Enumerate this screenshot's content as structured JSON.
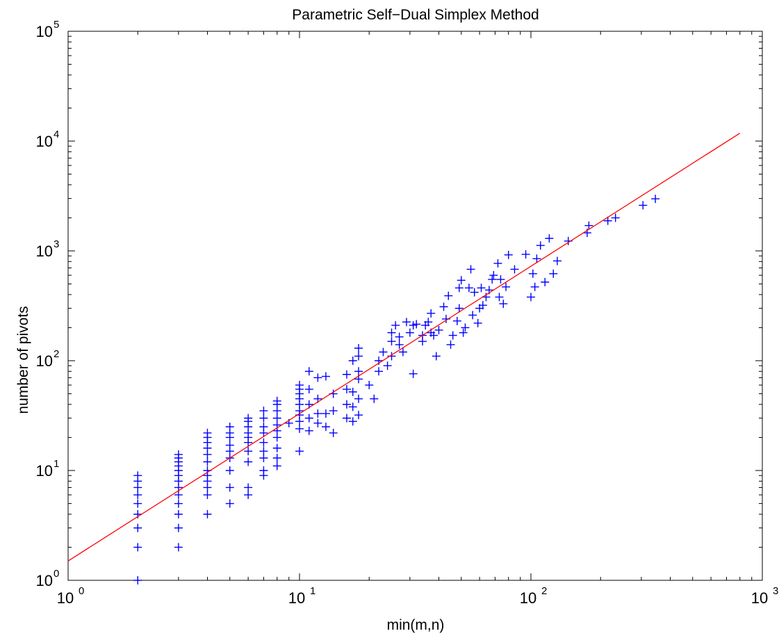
{
  "chart_data": {
    "type": "scatter",
    "title": "Parametric Self−Dual Simplex Method",
    "xlabel": "min(m,n)",
    "ylabel": "number of pivots",
    "xscale": "log",
    "yscale": "log",
    "xlim": [
      1,
      1000
    ],
    "ylim": [
      1,
      100000
    ],
    "x_ticks": [
      {
        "base": "10",
        "exp": "0",
        "value": 1
      },
      {
        "base": "10",
        "exp": "1",
        "value": 10
      },
      {
        "base": "10",
        "exp": "2",
        "value": 100
      },
      {
        "base": "10",
        "exp": "3",
        "value": 1000
      }
    ],
    "y_ticks": [
      {
        "base": "10",
        "exp": "0",
        "value": 1
      },
      {
        "base": "10",
        "exp": "1",
        "value": 10
      },
      {
        "base": "10",
        "exp": "2",
        "value": 100
      },
      {
        "base": "10",
        "exp": "3",
        "value": 1000
      },
      {
        "base": "10",
        "exp": "4",
        "value": 10000
      },
      {
        "base": "10",
        "exp": "5",
        "value": 100000
      }
    ],
    "grid": false,
    "series": [
      {
        "kind": "scatter",
        "marker": "+",
        "color": "#0000ff",
        "points": [
          [
            2,
            1
          ],
          [
            2,
            2
          ],
          [
            2,
            3
          ],
          [
            2,
            4
          ],
          [
            2,
            5
          ],
          [
            2,
            6
          ],
          [
            2,
            7
          ],
          [
            2,
            8
          ],
          [
            2,
            9
          ],
          [
            3,
            2
          ],
          [
            3,
            3
          ],
          [
            3,
            4
          ],
          [
            3,
            5
          ],
          [
            3,
            6
          ],
          [
            3,
            7
          ],
          [
            3,
            8
          ],
          [
            3,
            9
          ],
          [
            3,
            10
          ],
          [
            3,
            11
          ],
          [
            3,
            12
          ],
          [
            3,
            13
          ],
          [
            3,
            14
          ],
          [
            4,
            4
          ],
          [
            4,
            6
          ],
          [
            4,
            7
          ],
          [
            4,
            8
          ],
          [
            4,
            9
          ],
          [
            4,
            10
          ],
          [
            4,
            12
          ],
          [
            4,
            14
          ],
          [
            4,
            16
          ],
          [
            4,
            18
          ],
          [
            4,
            20
          ],
          [
            4,
            22
          ],
          [
            5,
            5
          ],
          [
            5,
            7
          ],
          [
            5,
            10
          ],
          [
            5,
            13
          ],
          [
            5,
            15
          ],
          [
            5,
            17
          ],
          [
            5,
            20
          ],
          [
            5,
            22
          ],
          [
            5,
            25
          ],
          [
            6,
            6
          ],
          [
            6,
            7
          ],
          [
            6,
            12
          ],
          [
            6,
            15
          ],
          [
            6,
            18
          ],
          [
            6,
            20
          ],
          [
            6,
            22
          ],
          [
            6,
            25
          ],
          [
            6,
            28
          ],
          [
            6,
            30
          ],
          [
            7,
            9
          ],
          [
            7,
            10
          ],
          [
            7,
            13
          ],
          [
            7,
            15
          ],
          [
            7,
            18
          ],
          [
            7,
            22
          ],
          [
            7,
            25
          ],
          [
            7,
            30
          ],
          [
            7,
            35
          ],
          [
            8,
            11
          ],
          [
            8,
            13
          ],
          [
            8,
            16
          ],
          [
            8,
            20
          ],
          [
            8,
            23
          ],
          [
            8,
            26
          ],
          [
            8,
            30
          ],
          [
            8,
            35
          ],
          [
            8,
            40
          ],
          [
            8,
            43
          ],
          [
            9,
            27
          ],
          [
            10,
            15
          ],
          [
            10,
            24
          ],
          [
            10,
            28
          ],
          [
            10,
            32
          ],
          [
            10,
            35
          ],
          [
            10,
            40
          ],
          [
            10,
            45
          ],
          [
            10,
            50
          ],
          [
            10,
            55
          ],
          [
            10,
            60
          ],
          [
            11,
            23
          ],
          [
            11,
            30
          ],
          [
            11,
            40
          ],
          [
            11,
            55
          ],
          [
            11,
            80
          ],
          [
            12,
            27
          ],
          [
            12,
            33
          ],
          [
            12,
            45
          ],
          [
            12,
            70
          ],
          [
            13,
            25
          ],
          [
            13,
            33
          ],
          [
            13,
            72
          ],
          [
            14,
            22
          ],
          [
            14,
            35
          ],
          [
            14,
            50
          ],
          [
            16,
            30
          ],
          [
            16,
            40
          ],
          [
            16,
            55
          ],
          [
            16,
            75
          ],
          [
            17,
            28
          ],
          [
            17,
            38
          ],
          [
            17,
            52
          ],
          [
            17,
            100
          ],
          [
            18,
            32
          ],
          [
            18,
            45
          ],
          [
            18,
            68
          ],
          [
            18,
            80
          ],
          [
            18,
            110
          ],
          [
            18,
            130
          ],
          [
            20,
            60
          ],
          [
            21,
            45
          ],
          [
            22,
            80
          ],
          [
            22,
            100
          ],
          [
            23,
            120
          ],
          [
            24,
            90
          ],
          [
            25,
            110
          ],
          [
            25,
            150
          ],
          [
            25,
            180
          ],
          [
            26,
            210
          ],
          [
            27,
            140
          ],
          [
            27,
            165
          ],
          [
            28,
            120
          ],
          [
            29,
            225
          ],
          [
            30,
            180
          ],
          [
            31,
            76
          ],
          [
            31,
            210
          ],
          [
            32,
            215
          ],
          [
            34,
            150
          ],
          [
            34,
            170
          ],
          [
            35,
            210
          ],
          [
            36,
            225
          ],
          [
            37,
            270
          ],
          [
            37,
            180
          ],
          [
            38,
            170
          ],
          [
            39,
            110
          ],
          [
            40,
            190
          ],
          [
            42,
            310
          ],
          [
            43,
            240
          ],
          [
            44,
            390
          ],
          [
            45,
            140
          ],
          [
            46,
            170
          ],
          [
            48,
            230
          ],
          [
            49,
            300
          ],
          [
            49,
            460
          ],
          [
            50,
            540
          ],
          [
            51,
            180
          ],
          [
            52,
            200
          ],
          [
            54,
            460
          ],
          [
            55,
            680
          ],
          [
            56,
            260
          ],
          [
            57,
            420
          ],
          [
            59,
            220
          ],
          [
            60,
            300
          ],
          [
            61,
            460
          ],
          [
            62,
            320
          ],
          [
            64,
            380
          ],
          [
            66,
            440
          ],
          [
            68,
            550
          ],
          [
            69,
            600
          ],
          [
            72,
            770
          ],
          [
            73,
            380
          ],
          [
            74,
            550
          ],
          [
            76,
            330
          ],
          [
            78,
            470
          ],
          [
            80,
            920
          ],
          [
            85,
            680
          ],
          [
            95,
            930
          ],
          [
            100,
            380
          ],
          [
            102,
            620
          ],
          [
            104,
            470
          ],
          [
            106,
            850
          ],
          [
            110,
            1120
          ],
          [
            115,
            520
          ],
          [
            120,
            1300
          ],
          [
            125,
            620
          ],
          [
            130,
            810
          ],
          [
            145,
            1230
          ],
          [
            175,
            1460
          ],
          [
            178,
            1700
          ],
          [
            215,
            1880
          ],
          [
            232,
            2000
          ],
          [
            305,
            2600
          ],
          [
            345,
            2980
          ]
        ]
      },
      {
        "kind": "line",
        "color": "#ff0000",
        "points": [
          [
            1,
            1.5
          ],
          [
            800,
            11800
          ]
        ]
      }
    ]
  }
}
